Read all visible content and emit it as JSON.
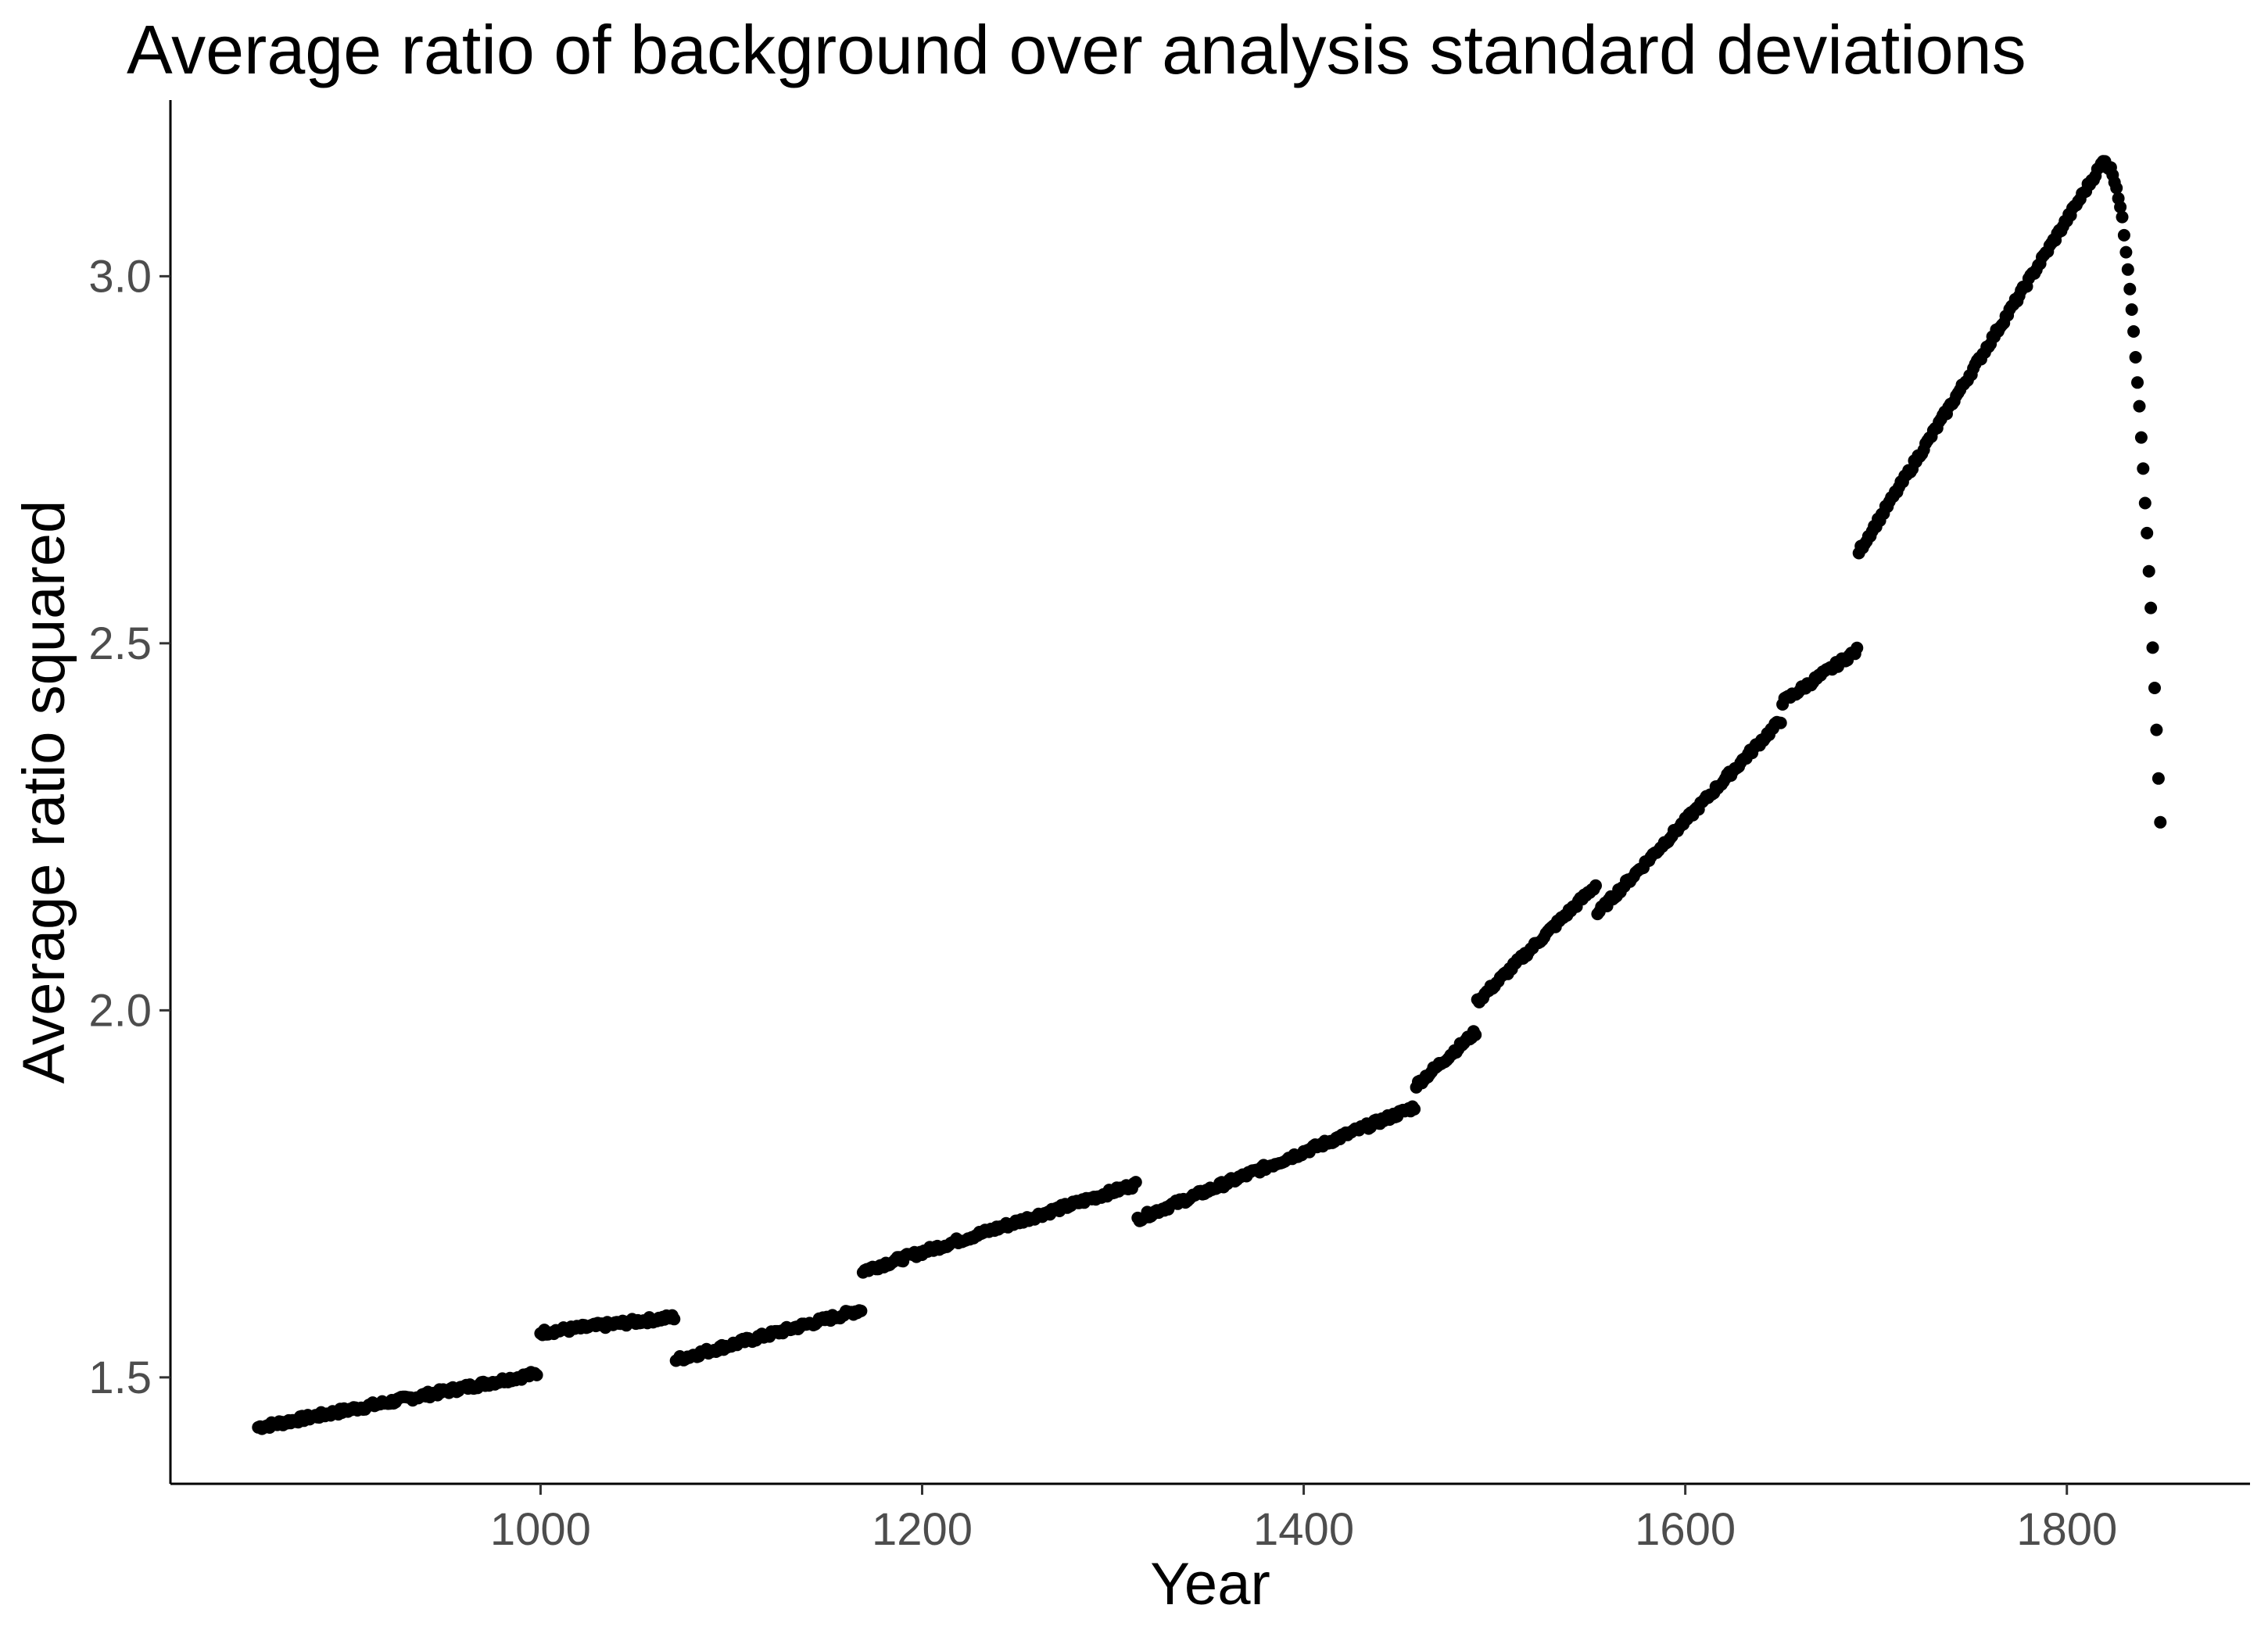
{
  "chart_data": {
    "type": "scatter",
    "title": "Average ratio of background over analysis standard deviations",
    "xlabel": "Year",
    "ylabel": "Average ratio squared",
    "xlim": [
      806,
      1896
    ],
    "ylim": [
      1.355,
      3.24
    ],
    "x_ticks": [
      1000,
      1200,
      1400,
      1600,
      1800
    ],
    "x_tick_labels": [
      "1000",
      "1200",
      "1400",
      "1600",
      "1800"
    ],
    "y_ticks": [
      1.5,
      2.0,
      2.5,
      3.0
    ],
    "y_tick_labels": [
      "1.5",
      "2.0",
      "2.5",
      "3.0"
    ],
    "grid": false,
    "legend": "none",
    "point_color": "#000000",
    "segments": [
      {
        "x_start": 852,
        "x_end": 998,
        "y_start": 1.432,
        "y_end": 1.505
      },
      {
        "x_start": 1000,
        "x_end": 1070,
        "y_start": 1.561,
        "y_end": 1.582
      },
      {
        "x_start": 1071,
        "x_end": 1168,
        "y_start": 1.524,
        "y_end": 1.592
      },
      {
        "x_start": 1169,
        "x_end": 1312,
        "y_start": 1.645,
        "y_end": 1.763
      },
      {
        "x_start": 1313,
        "x_end": 1458,
        "y_start": 1.716,
        "y_end": 1.868
      },
      {
        "x_start": 1459,
        "x_end": 1490,
        "y_start": 1.898,
        "y_end": 1.97
      },
      {
        "x_start": 1491,
        "x_end": 1553,
        "y_start": 2.012,
        "y_end": 2.17
      },
      {
        "x_start": 1554,
        "x_end": 1650,
        "y_start": 2.132,
        "y_end": 2.395
      },
      {
        "x_start": 1651,
        "x_end": 1690,
        "y_start": 2.42,
        "y_end": 2.49
      },
      {
        "x_start": 1691,
        "x_end": 1820,
        "y_start": 2.625,
        "y_end": 3.16
      },
      {
        "x_start": 1821,
        "x_end": 1849,
        "y_start": 3.15,
        "y_end": 2.255
      }
    ]
  }
}
